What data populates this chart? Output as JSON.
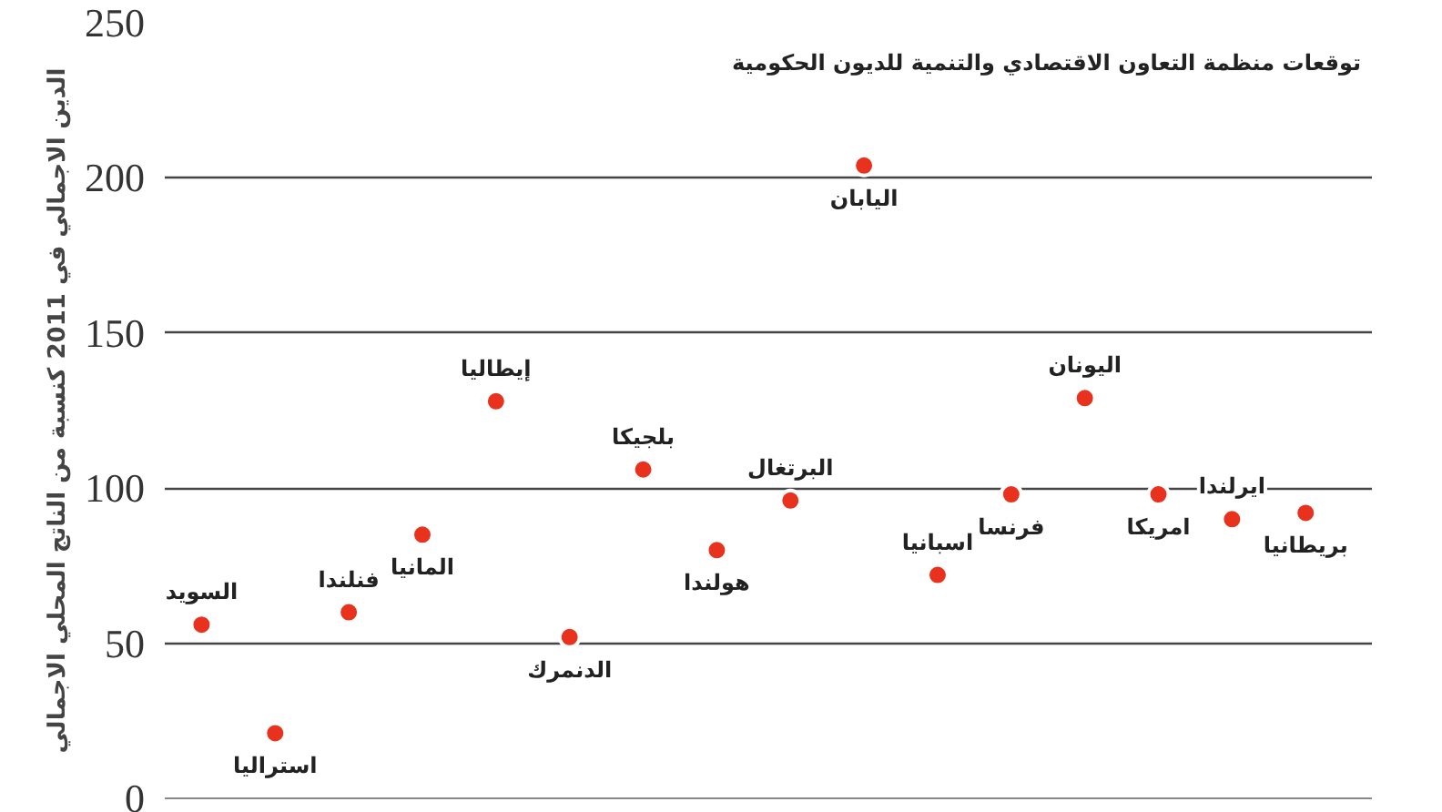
{
  "chart_data": {
    "type": "scatter",
    "title": "توقعات منظمة التعاون الاقتصادي والتنمية للديون الحكومية",
    "ylabel": "الدين الاجمالي في 2011 كنسبة من الناتج المحلي الاجمالي",
    "categories": [
      null,
      null,
      null,
      null,
      null,
      null,
      null,
      null,
      null,
      null,
      null,
      null,
      null,
      null,
      null,
      null
    ],
    "values": [
      56,
      21,
      60,
      85,
      128,
      52,
      106,
      80,
      96,
      204,
      72,
      98,
      129,
      98,
      90,
      92
    ],
    "color": "#e8321e",
    "marker": "circle",
    "ylim": [
      0,
      250
    ],
    "yticks": [
      0,
      50,
      100,
      150,
      200,
      250
    ],
    "grid": "y",
    "annotations": [
      "السويد",
      "استراليا",
      "فنلندا",
      "المانيا",
      "إيطاليا",
      "الدنمرك",
      "بلجيكا",
      "هولندا",
      "البرتغال",
      "اليابان",
      "اسبانيا",
      "فرنسا",
      "اليونان",
      "امريكا",
      "ايرلندا",
      "بريطانيا"
    ]
  }
}
